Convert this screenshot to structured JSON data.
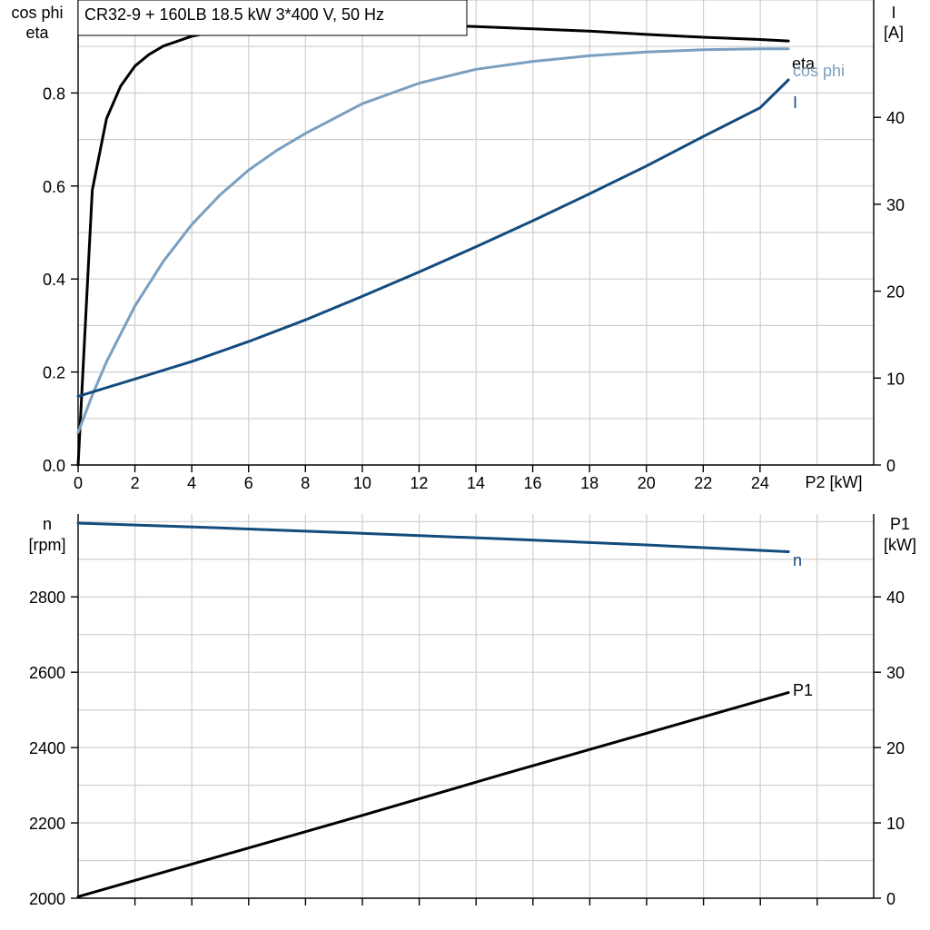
{
  "colors": {
    "eta": "#000000",
    "cos_phi": "#7a9fc0",
    "current": "#144b7e",
    "speed": "#144b7e",
    "p1": "#000000"
  },
  "chart_data": [
    {
      "type": "line",
      "title": "CR32-9 + 160LB   18.5 kW   3*400 V, 50 Hz",
      "xlabel": "P2 [kW]",
      "ylabel_left": [
        "cos phi",
        "eta"
      ],
      "ylabel_right": [
        "I",
        "[A]"
      ],
      "xlim": [
        0,
        28
      ],
      "xticks": [
        0,
        2,
        4,
        6,
        8,
        10,
        12,
        14,
        16,
        18,
        20,
        22,
        24
      ],
      "ylim_left": [
        0,
        1.0
      ],
      "yticks_left": [
        0.0,
        0.2,
        0.4,
        0.6,
        0.8
      ],
      "ytick_labels_left": [
        "0.0",
        "0.2",
        "0.4",
        "0.6",
        "0.8"
      ],
      "ylim_right": [
        0,
        53.5
      ],
      "yticks_right": [
        0,
        10,
        20,
        30,
        40
      ],
      "grid": true,
      "series": [
        {
          "name": "eta",
          "axis": "left",
          "color_key": "eta",
          "x": [
            0,
            0.5,
            1,
            1.5,
            2,
            2.5,
            3,
            4,
            5,
            6,
            8,
            10,
            12,
            14,
            16,
            18,
            20,
            22,
            24,
            25
          ],
          "y": [
            0.0,
            0.591,
            0.745,
            0.815,
            0.858,
            0.883,
            0.901,
            0.922,
            0.934,
            0.941,
            0.948,
            0.949,
            0.946,
            0.943,
            0.938,
            0.933,
            0.926,
            0.92,
            0.915,
            0.912
          ]
        },
        {
          "name": "cos phi",
          "axis": "left",
          "color_key": "cos_phi",
          "x": [
            0,
            0.5,
            1,
            2,
            3,
            4,
            5,
            6,
            7,
            8,
            10,
            12,
            14,
            16,
            18,
            20,
            22,
            24,
            25
          ],
          "y": [
            0.07,
            0.15,
            0.222,
            0.342,
            0.438,
            0.517,
            0.581,
            0.634,
            0.677,
            0.713,
            0.777,
            0.821,
            0.851,
            0.868,
            0.88,
            0.888,
            0.893,
            0.895,
            0.895
          ]
        },
        {
          "name": "I",
          "axis": "right",
          "color_key": "current",
          "x": [
            0,
            2,
            4,
            6,
            8,
            10,
            12,
            14,
            16,
            18,
            20,
            22,
            24,
            25
          ],
          "y": [
            7.9,
            9.9,
            11.9,
            14.2,
            16.7,
            19.4,
            22.2,
            25.1,
            28.1,
            31.2,
            34.4,
            37.8,
            41.1,
            44.3
          ]
        }
      ]
    },
    {
      "type": "line",
      "xlabel": "",
      "ylabel_left": [
        "n",
        "[rpm]"
      ],
      "ylabel_right": [
        "P1",
        "[kW]"
      ],
      "xlim": [
        0,
        28
      ],
      "ylim_left": [
        2000,
        3020
      ],
      "yticks_left": [
        2000,
        2200,
        2400,
        2600,
        2800
      ],
      "ylim_right": [
        0,
        51
      ],
      "yticks_right": [
        0,
        10,
        20,
        30,
        40
      ],
      "grid": true,
      "series": [
        {
          "name": "n",
          "axis": "left",
          "color_key": "speed",
          "x": [
            0,
            5,
            10,
            15,
            20,
            25
          ],
          "y": [
            2996,
            2983,
            2969,
            2954,
            2938,
            2920
          ]
        },
        {
          "name": "P1",
          "axis": "right",
          "color_key": "p1",
          "x": [
            0,
            5,
            10,
            15,
            20,
            25
          ],
          "y": [
            0.2,
            5.6,
            11.0,
            16.5,
            21.9,
            27.3
          ]
        }
      ]
    }
  ]
}
